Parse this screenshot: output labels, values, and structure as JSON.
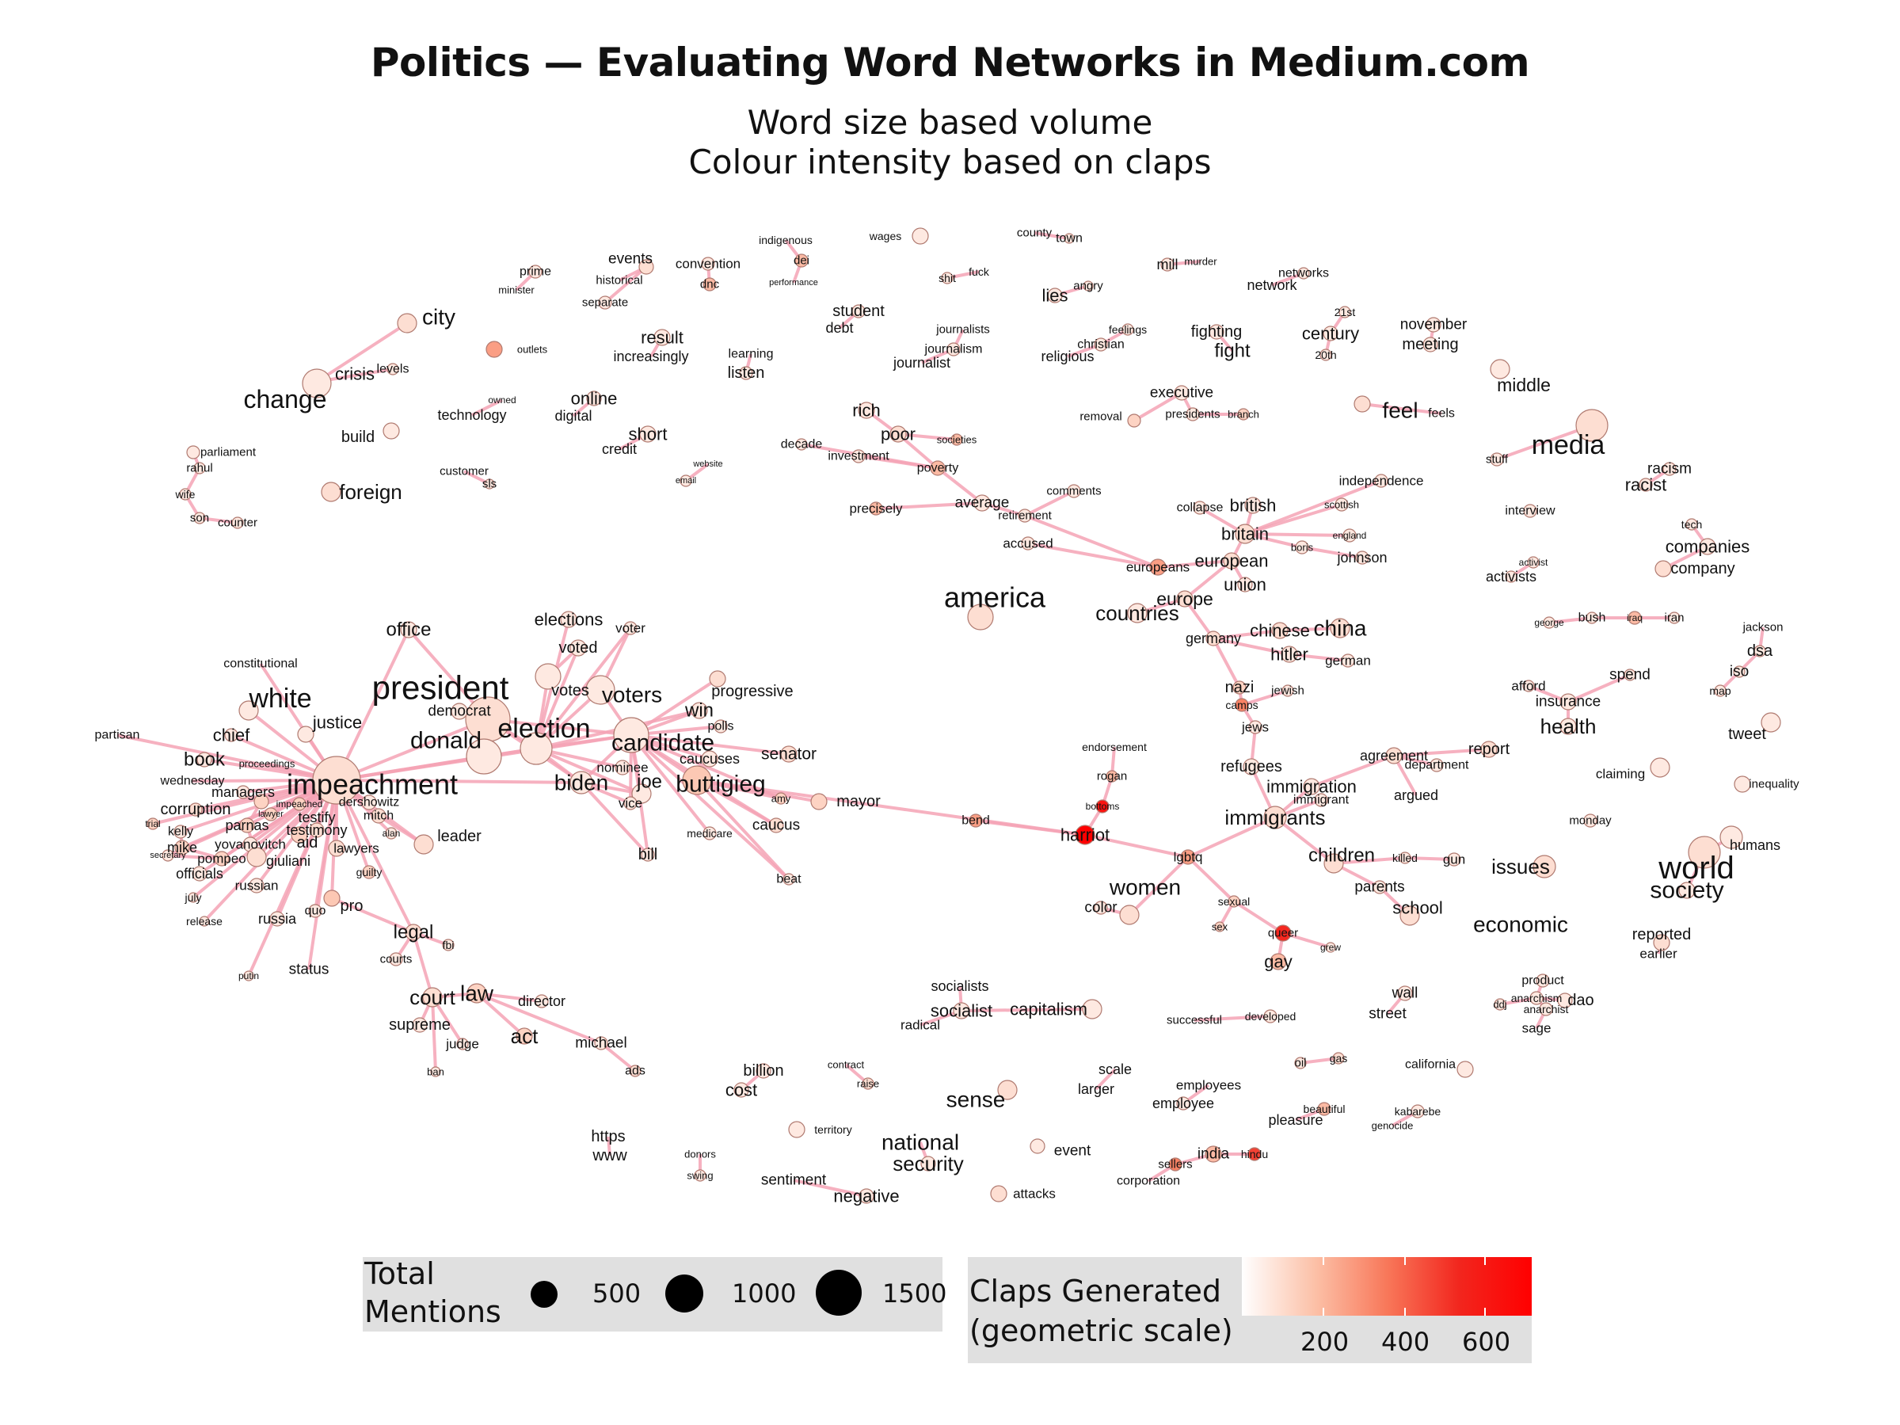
{
  "title": "Politics — Evaluating Word Networks in Medium.com",
  "subtitle_1": "Word size based volume",
  "subtitle_2": "Colour intensity based on claps",
  "legend": {
    "size_title_1": "Total",
    "size_title_2": "Mentions",
    "size_values": [
      "500",
      "1000",
      "1500"
    ],
    "color_title_1": "Claps Generated",
    "color_title_2": "(geometric scale)",
    "color_values": [
      "200",
      "400",
      "600"
    ],
    "color_low": "#ffffff",
    "color_high": "#ff0000",
    "edge_color": "#f5a3b5"
  },
  "chart_data": {
    "type": "network",
    "nodes": [
      "constitutional",
      "partisan",
      "chief",
      "book",
      "wednesday",
      "corruption",
      "managers",
      "trial",
      "impeachment",
      "impeached",
      "lawyer",
      "testify",
      "testimony",
      "parnas",
      "kelly",
      "mike",
      "secretary",
      "pompeo",
      "yovanovitch",
      "giuliani",
      "aid",
      "dershowitz",
      "mitch",
      "alan",
      "lawyers",
      "guilty",
      "leader",
      "officials",
      "july",
      "russian",
      "release",
      "russia",
      "quo",
      "pro",
      "status",
      "putin",
      "justice",
      "white",
      "proceedings",
      "office",
      "president",
      "donald",
      "democrat",
      "elections",
      "voted",
      "votes",
      "voter",
      "voters",
      "election",
      "candidate",
      "progressive",
      "win",
      "polls",
      "senator",
      "caucuses",
      "nominee",
      "joe",
      "biden",
      "buttigieg",
      "amy",
      "caucus",
      "mayor",
      "vice",
      "medicare",
      "bill",
      "beat",
      "bend",
      "harriot",
      "endorsement",
      "rogan",
      "bottoms",
      "women",
      "color",
      "lgbtq",
      "sexual",
      "sex",
      "queer",
      "grew",
      "gay",
      "immigrants",
      "refugees",
      "immigration",
      "immigrant",
      "agreement",
      "department",
      "report",
      "argued",
      "children",
      "killed",
      "gun",
      "parents",
      "school",
      "legal",
      "fbi",
      "courts",
      "court",
      "law",
      "supreme",
      "judge",
      "ban",
      "act",
      "director",
      "michael",
      "ads",
      "nazi",
      "camps",
      "jewish",
      "jews",
      "germany",
      "hitler",
      "german",
      "chinese",
      "china",
      "europe",
      "countries",
      "european",
      "europeans",
      "union",
      "britain",
      "british",
      "collapse",
      "scottish",
      "england",
      "boris",
      "johnson",
      "independence",
      "america",
      "rich",
      "poor",
      "decade",
      "investment",
      "poverty",
      "societies",
      "precisely",
      "average",
      "retirement",
      "comments",
      "accused",
      "prime",
      "minister",
      "events",
      "historical",
      "separate",
      "convention",
      "dnc",
      "indigenous",
      "dei",
      "performance",
      "wages",
      "county",
      "town",
      "shit",
      "fuck",
      "mill",
      "murder",
      "networks",
      "network",
      "lies",
      "angry",
      "city",
      "outlets",
      "result",
      "increasingly",
      "learning",
      "listen",
      "student",
      "debt",
      "journalists",
      "journalism",
      "journalist",
      "feelings",
      "christian",
      "religious",
      "fighting",
      "fight",
      "21st",
      "century",
      "20th",
      "november",
      "meeting",
      "crisis",
      "levels",
      "change",
      "technology",
      "owned",
      "online",
      "digital",
      "short",
      "credit",
      "build",
      "parliament",
      "rahul",
      "wife",
      "son",
      "counter",
      "foreign",
      "customer",
      "sls",
      "website",
      "email",
      "executive",
      "removal",
      "presidents",
      "branch",
      "feel",
      "feels",
      "middle",
      "stuff",
      "media",
      "racism",
      "racist",
      "interview",
      "tech",
      "companies",
      "company",
      "activist",
      "activists",
      "george",
      "bush",
      "iraq",
      "iran",
      "jackson",
      "dsa",
      "iso",
      "map",
      "afford",
      "spend",
      "insurance",
      "health",
      "tweet",
      "claiming",
      "inequality",
      "monday",
      "humans",
      "issues",
      "world",
      "society",
      "economic",
      "reported",
      "earlier",
      "product",
      "anarchism",
      "anarchist",
      "ddj",
      "dao",
      "sage",
      "wall",
      "street",
      "socialists",
      "socialist",
      "capitalism",
      "radical",
      "successful",
      "developed",
      "oil",
      "gas",
      "california",
      "billion",
      "cost",
      "contract",
      "raise",
      "scale",
      "larger",
      "employees",
      "employee",
      "beautiful",
      "pleasure",
      "kabarebe",
      "genocide",
      "https",
      "www",
      "donors",
      "swing",
      "territory",
      "national",
      "security",
      "sense",
      "event",
      "sellers",
      "corporation",
      "india",
      "hindu",
      "sentiment",
      "negative",
      "attacks"
    ],
    "size_scale": {
      "breaks": [
        500,
        1000,
        1500
      ],
      "label": "Total Mentions"
    },
    "color_scale": {
      "breaks": [
        200,
        400,
        600
      ],
      "label": "Claps Generated (geometric scale)",
      "low": "#ffffff",
      "high": "#ff0000"
    }
  }
}
